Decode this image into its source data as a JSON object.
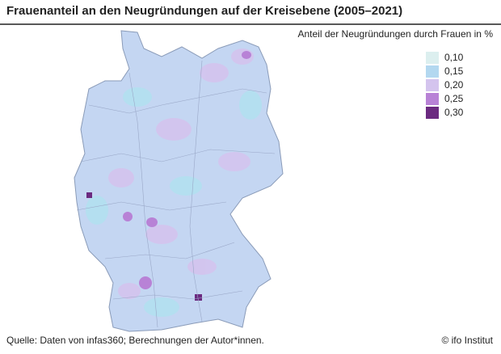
{
  "title": "Frauenanteil an den Neugründungen auf der Kreisebene (2005–2021)",
  "legend": {
    "title": "Anteil der Neugründungen durch Frauen in %",
    "items": [
      {
        "label": "0,10",
        "color": "#dcefef"
      },
      {
        "label": "0,15",
        "color": "#b3d8f0"
      },
      {
        "label": "0,20",
        "color": "#d4c4ee"
      },
      {
        "label": "0,25",
        "color": "#b882d6"
      },
      {
        "label": "0,30",
        "color": "#6b2a80"
      }
    ]
  },
  "source": "Quelle: Daten von infas360; Berechnungen der Autor*innen.",
  "credit": "© ifo Institut"
}
